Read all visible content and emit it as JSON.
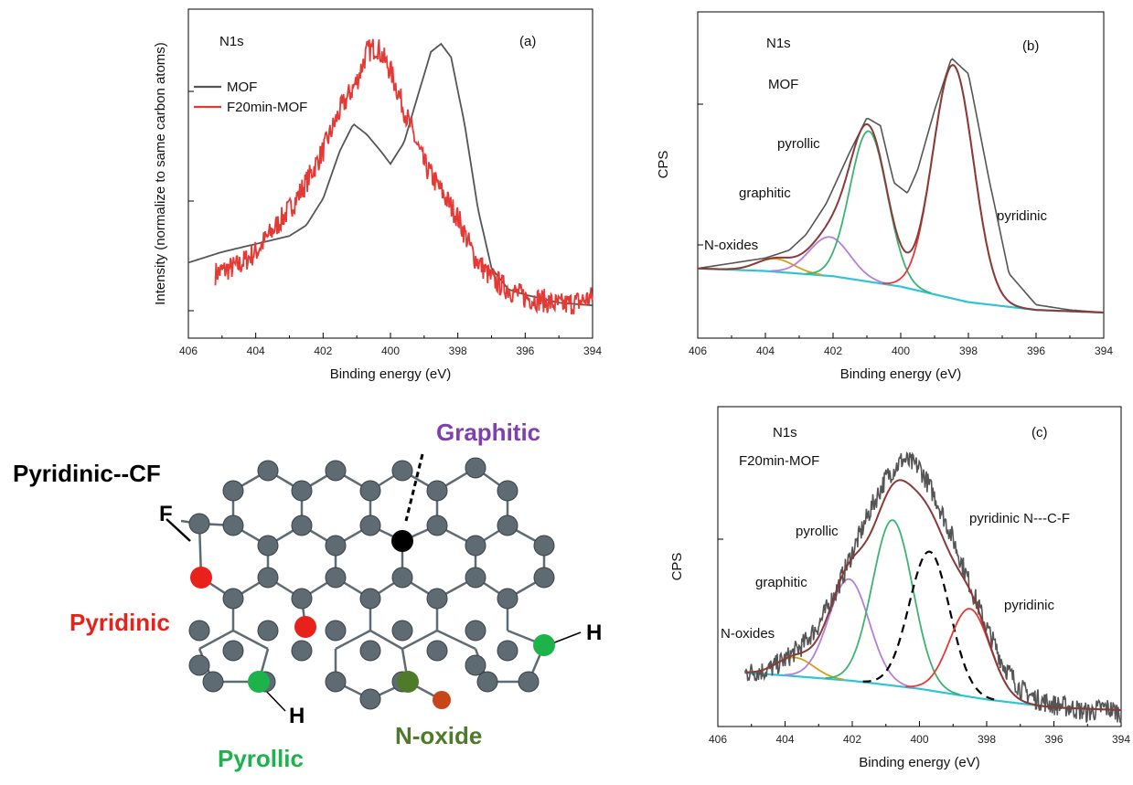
{
  "chart_data": [
    {
      "id": "a",
      "type": "line",
      "panel_label": "(a)",
      "xlabel": "Binding energy (eV)",
      "ylabel": "Intensity (normalize to same carbon atoms)",
      "xlim": [
        406,
        394
      ],
      "ylim": [
        0,
        1
      ],
      "x_reversed": true,
      "xticks": [
        "406",
        "404",
        "402",
        "400",
        "398",
        "396",
        "394"
      ],
      "annotations": [
        {
          "text": "N1s"
        }
      ],
      "legend_position": "top-left",
      "series": [
        {
          "name": "MOF",
          "color": "#555555",
          "x": [
            406,
            405,
            404,
            403,
            402.5,
            402,
            401.5,
            401.1,
            400.7,
            400.3,
            400,
            399.6,
            399.2,
            398.8,
            398.5,
            398.2,
            397.8,
            397.4,
            397,
            396.5,
            396,
            395,
            394
          ],
          "values": [
            0.18,
            0.22,
            0.25,
            0.28,
            0.32,
            0.42,
            0.6,
            0.7,
            0.66,
            0.6,
            0.55,
            0.63,
            0.8,
            0.97,
            1.0,
            0.95,
            0.7,
            0.38,
            0.16,
            0.08,
            0.06,
            0.03,
            0.02
          ]
        },
        {
          "name": "F20min-MOF",
          "color": "#e53935",
          "noisy": true,
          "x": [
            405.2,
            404.5,
            404,
            403.5,
            403,
            402.5,
            402,
            401.5,
            401,
            400.7,
            400.4,
            400,
            399.5,
            399,
            398.5,
            398,
            397.5,
            397,
            396.5,
            396,
            395.5,
            395,
            394.5,
            394
          ],
          "values": [
            0.14,
            0.17,
            0.22,
            0.3,
            0.38,
            0.48,
            0.6,
            0.75,
            0.86,
            0.97,
            0.99,
            0.9,
            0.72,
            0.55,
            0.45,
            0.35,
            0.2,
            0.12,
            0.08,
            0.05,
            0.04,
            0.02,
            0.03,
            0.05
          ]
        }
      ]
    },
    {
      "id": "b",
      "type": "line",
      "panel_label": "(b)",
      "xlabel": "Binding energy (eV)",
      "ylabel": "CPS",
      "xlim": [
        406,
        394
      ],
      "ylim": [
        0,
        1
      ],
      "x_reversed": true,
      "xticks": [
        "406",
        "404",
        "402",
        "400",
        "398",
        "396",
        "394"
      ],
      "annotations": [
        {
          "text": "N1s"
        },
        {
          "text": "MOF"
        },
        {
          "text": "pyrollic"
        },
        {
          "text": "graphitic"
        },
        {
          "text": "N-oxides"
        },
        {
          "text": "pyridinic"
        }
      ],
      "peaks": [
        {
          "label": "N-oxides",
          "center": 403.7,
          "sigma": 0.55,
          "height": 0.05,
          "color": "#d4a017"
        },
        {
          "label": "graphitic",
          "center": 402.1,
          "sigma": 0.6,
          "height": 0.15,
          "color": "#b57edc"
        },
        {
          "label": "pyrollic",
          "center": 400.95,
          "sigma": 0.55,
          "height": 0.58,
          "color": "#3cb371"
        },
        {
          "label": "pyridinic",
          "center": 398.45,
          "sigma": 0.6,
          "height": 0.9,
          "color": "#e53935"
        }
      ],
      "baseline": {
        "color": "#2ec4d4",
        "x": [
          406,
          404,
          402,
          400,
          398,
          396,
          394
        ],
        "values": [
          0.17,
          0.16,
          0.14,
          0.1,
          0.04,
          0.01,
          0.0
        ]
      },
      "envelope_color": "#8b3a3a",
      "raw": {
        "color": "#555555",
        "x": [
          406,
          405,
          404,
          403.3,
          402.8,
          402.2,
          401.5,
          401,
          400.6,
          400.2,
          399.8,
          399.5,
          399,
          398.5,
          398,
          397.4,
          396.8,
          396,
          395,
          394
        ],
        "values": [
          0.17,
          0.19,
          0.21,
          0.24,
          0.3,
          0.42,
          0.62,
          0.75,
          0.72,
          0.5,
          0.46,
          0.55,
          0.78,
          0.98,
          0.92,
          0.52,
          0.15,
          0.03,
          0.01,
          0.0
        ]
      }
    },
    {
      "id": "c",
      "type": "line",
      "panel_label": "(c)",
      "xlabel": "Binding energy (eV)",
      "ylabel": "CPS",
      "xlim": [
        406,
        394
      ],
      "ylim": [
        0,
        1
      ],
      "x_reversed": true,
      "xticks": [
        "406",
        "404",
        "402",
        "400",
        "398",
        "396",
        "394"
      ],
      "annotations": [
        {
          "text": "N1s"
        },
        {
          "text": "F20min-MOF"
        },
        {
          "text": "pyrollic"
        },
        {
          "text": "graphitic"
        },
        {
          "text": "N-oxides"
        },
        {
          "text": "pyridinic N---C-F"
        },
        {
          "text": "pyridinic"
        }
      ],
      "peaks": [
        {
          "label": "N-oxides",
          "center": 403.7,
          "sigma": 0.55,
          "height": 0.07,
          "color": "#d4a017"
        },
        {
          "label": "graphitic",
          "center": 402.1,
          "sigma": 0.6,
          "height": 0.38,
          "color": "#b57edc"
        },
        {
          "label": "pyrollic",
          "center": 400.8,
          "sigma": 0.6,
          "height": 0.62,
          "color": "#3cb371"
        },
        {
          "label": "pyridinic N---C-F",
          "center": 399.7,
          "sigma": 0.6,
          "height": 0.52,
          "color": "#000000",
          "dashed": true
        },
        {
          "label": "pyridinic",
          "center": 398.5,
          "sigma": 0.6,
          "height": 0.33,
          "color": "#e53935"
        }
      ],
      "baseline": {
        "color": "#2ec4d4",
        "x": [
          405.2,
          404,
          402,
          400,
          398,
          396,
          394
        ],
        "values": [
          0.15,
          0.14,
          0.12,
          0.09,
          0.05,
          0.02,
          0.01
        ]
      },
      "envelope_color": "#8b3a3a",
      "raw": {
        "color": "#555555",
        "noisy": true,
        "x": [
          405.2,
          404.5,
          404,
          403.5,
          403,
          402.5,
          402,
          401.5,
          401,
          400.5,
          400,
          399.5,
          399,
          398.5,
          398,
          397.5,
          397,
          396.5,
          396,
          395.5,
          395,
          394.5,
          394
        ],
        "values": [
          0.15,
          0.16,
          0.2,
          0.25,
          0.33,
          0.45,
          0.6,
          0.75,
          0.88,
          0.95,
          0.92,
          0.8,
          0.65,
          0.48,
          0.32,
          0.18,
          0.09,
          0.05,
          0.03,
          0.02,
          0.0,
          0.02,
          0.0
        ]
      }
    }
  ],
  "molecule": {
    "labels": {
      "pyridinic_cf": "Pyridinic--CF",
      "graphitic": "Graphitic",
      "pyridinic": "Pyridinic",
      "pyrollic": "Pyrollic",
      "n_oxide": "N-oxide",
      "f": "F",
      "h1": "H",
      "h2": "H"
    },
    "colors": {
      "graphitic": "#7e3fb0",
      "pyridinic": "#e8221b",
      "pyrollic": "#1bb34a",
      "n_oxide": "#4f7a2a",
      "carbon": "#5f6b73",
      "bond": "#5f6b73"
    }
  }
}
